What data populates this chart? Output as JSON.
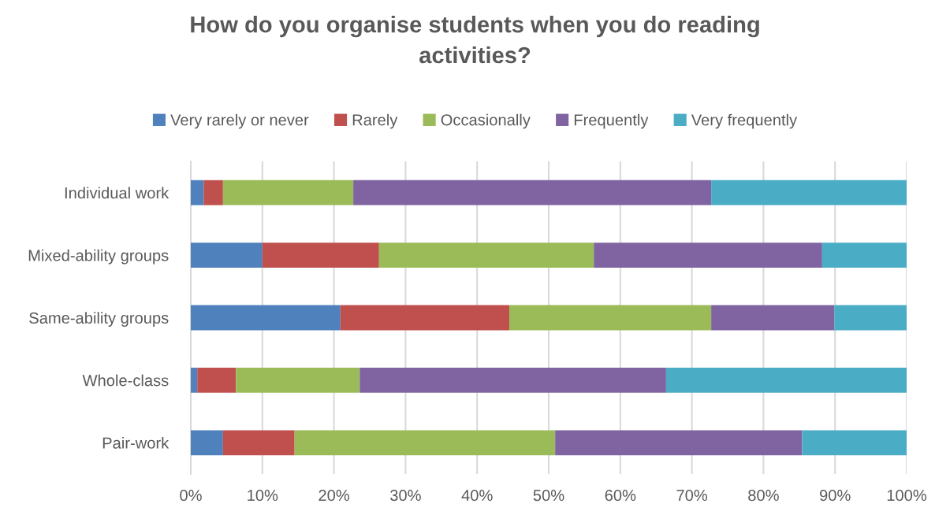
{
  "chart_data": {
    "type": "bar",
    "orientation": "horizontal",
    "stacked": true,
    "title": "How do you organise students when you do reading\nactivities?",
    "categories": [
      "Individual work",
      "Mixed-ability groups",
      "Same-ability groups",
      "Whole-class",
      "Pair-work"
    ],
    "series": [
      {
        "name": "Very rarely or never",
        "color": "#4f81bd",
        "values": [
          1.8,
          10.0,
          20.9,
          0.9,
          4.5
        ]
      },
      {
        "name": "Rarely",
        "color": "#c0504d",
        "values": [
          2.7,
          16.3,
          23.6,
          5.4,
          10.0
        ]
      },
      {
        "name": "Occasionally",
        "color": "#9bbb59",
        "values": [
          18.2,
          30.0,
          28.2,
          17.3,
          36.4
        ]
      },
      {
        "name": "Frequently",
        "color": "#8064a2",
        "values": [
          50.0,
          31.9,
          17.2,
          42.8,
          34.5
        ]
      },
      {
        "name": "Very frequently",
        "color": "#4bacc6",
        "values": [
          27.3,
          11.8,
          10.1,
          33.6,
          14.6
        ]
      }
    ],
    "xlim": [
      0,
      100
    ],
    "xticks": [
      {
        "value": 0,
        "label": "0%"
      },
      {
        "value": 10,
        "label": "10%"
      },
      {
        "value": 20,
        "label": "20%"
      },
      {
        "value": 30,
        "label": "30%"
      },
      {
        "value": 40,
        "label": "40%"
      },
      {
        "value": 50,
        "label": "50%"
      },
      {
        "value": 60,
        "label": "60%"
      },
      {
        "value": 70,
        "label": "70%"
      },
      {
        "value": 80,
        "label": "80%"
      },
      {
        "value": 90,
        "label": "90%"
      },
      {
        "value": 100,
        "label": "100%"
      }
    ],
    "grid": "x",
    "legend": "top"
  }
}
